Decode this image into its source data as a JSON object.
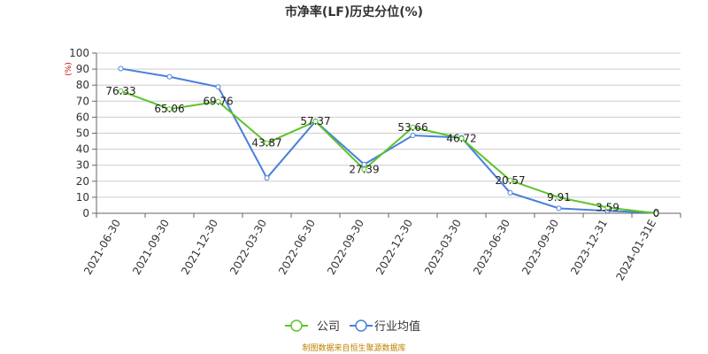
{
  "chart_data": {
    "type": "line",
    "title": "市净率(LF)历史分位(%)",
    "unit_label": "(%)",
    "categories": [
      "2021-06-30",
      "2021-09-30",
      "2021-12-30",
      "2022-03-30",
      "2022-06-30",
      "2022-09-30",
      "2022-12-30",
      "2023-03-30",
      "2023-06-30",
      "2023-09-30",
      "2023-12-31",
      "2024-01-31E"
    ],
    "ylim": [
      0,
      100
    ],
    "yticks": [
      0,
      10,
      20,
      30,
      40,
      50,
      60,
      70,
      80,
      90,
      100
    ],
    "grid": true,
    "legend_position": "bottom",
    "series": [
      {
        "name": "公司",
        "color": "#5cc42a",
        "values": [
          76.33,
          65.06,
          69.76,
          43.87,
          57.37,
          27.39,
          53.66,
          46.72,
          20.57,
          9.91,
          3.59,
          0
        ],
        "labels": [
          "76.33",
          "65.06",
          "69.76",
          "43.87",
          "57.37",
          "27.39",
          "53.66",
          "46.72",
          "20.57",
          "9.91",
          "3.59",
          "0"
        ]
      },
      {
        "name": "行业均值",
        "color": "#4a7fdc",
        "values": [
          90.3,
          85.2,
          78.9,
          22.0,
          57.5,
          30.5,
          48.6,
          47.2,
          12.8,
          3.1,
          1.5,
          0.3
        ]
      }
    ]
  },
  "source_note": "制图数据来自恒生聚源数据库"
}
